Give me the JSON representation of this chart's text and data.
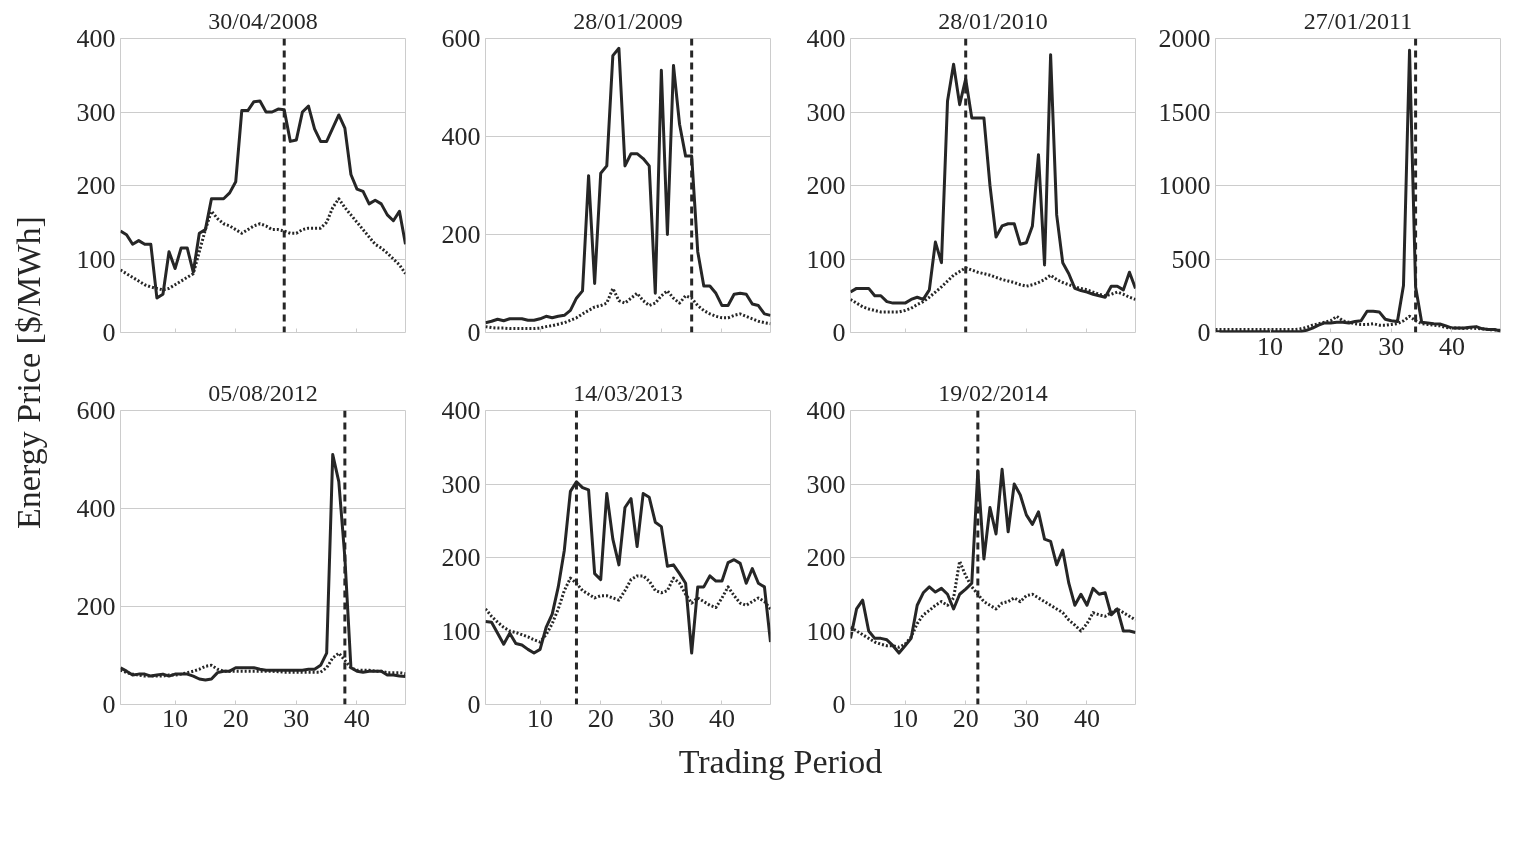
{
  "chart_data": [
    {
      "type": "line",
      "title": "30/04/2008",
      "ylabel": "Energy Price [$/MWh]",
      "x": [
        1,
        2,
        3,
        4,
        5,
        6,
        7,
        8,
        9,
        10,
        11,
        12,
        13,
        14,
        15,
        16,
        17,
        18,
        19,
        20,
        21,
        22,
        23,
        24,
        25,
        26,
        27,
        28,
        29,
        30,
        31,
        32,
        33,
        34,
        35,
        36,
        37,
        38,
        39,
        40,
        41,
        42,
        43,
        44,
        45,
        46,
        47,
        48
      ],
      "xlim": [
        1,
        48
      ],
      "xticks": [
        10,
        20,
        30,
        40
      ],
      "ylim": [
        0,
        400
      ],
      "yticks": [
        0,
        100,
        200,
        300,
        400
      ],
      "grid": "y",
      "tick_labels": "y",
      "series": [
        {
          "color": "#262626",
          "line_style": "solid",
          "values": [
            138,
            133,
            120,
            125,
            120,
            120,
            47,
            52,
            110,
            87,
            115,
            115,
            82,
            135,
            140,
            182,
            182,
            182,
            190,
            205,
            302,
            302,
            314,
            315,
            300,
            300,
            304,
            303,
            260,
            262,
            300,
            308,
            277,
            260,
            260,
            278,
            296,
            278,
            215,
            195,
            192,
            175,
            180,
            175,
            160,
            152,
            165,
            120
          ]
        },
        {
          "color": "#262626",
          "line_style": "dotted",
          "values": [
            85,
            80,
            75,
            70,
            65,
            62,
            60,
            58,
            60,
            65,
            70,
            75,
            80,
            110,
            140,
            165,
            155,
            148,
            145,
            140,
            135,
            140,
            145,
            148,
            145,
            140,
            140,
            138,
            135,
            135,
            140,
            142,
            142,
            142,
            150,
            170,
            182,
            170,
            160,
            150,
            140,
            130,
            120,
            115,
            108,
            100,
            92,
            80
          ]
        }
      ],
      "ref_lines": [
        {
          "axis": "x",
          "value": 28,
          "line_style": "dashed",
          "color": "#262626"
        }
      ]
    },
    {
      "type": "line",
      "title": "28/01/2009",
      "x": [
        1,
        2,
        3,
        4,
        5,
        6,
        7,
        8,
        9,
        10,
        11,
        12,
        13,
        14,
        15,
        16,
        17,
        18,
        19,
        20,
        21,
        22,
        23,
        24,
        25,
        26,
        27,
        28,
        29,
        30,
        31,
        32,
        33,
        34,
        35,
        36,
        37,
        38,
        39,
        40,
        41,
        42,
        43,
        44,
        45,
        46,
        47,
        48
      ],
      "xlim": [
        1,
        48
      ],
      "xticks": [
        10,
        20,
        30,
        40
      ],
      "ylim": [
        0,
        600
      ],
      "yticks": [
        0,
        200,
        400,
        600
      ],
      "grid": "y",
      "tick_labels": "y",
      "series": [
        {
          "color": "#262626",
          "line_style": "solid",
          "values": [
            20,
            23,
            27,
            24,
            28,
            28,
            28,
            25,
            25,
            28,
            33,
            30,
            33,
            35,
            45,
            70,
            85,
            320,
            100,
            325,
            340,
            565,
            580,
            340,
            365,
            365,
            355,
            340,
            80,
            535,
            200,
            545,
            425,
            360,
            360,
            165,
            95,
            95,
            80,
            55,
            55,
            78,
            80,
            78,
            58,
            55,
            38,
            35
          ]
        },
        {
          "color": "#262626",
          "line_style": "dotted",
          "values": [
            12,
            10,
            9,
            9,
            8,
            8,
            8,
            8,
            8,
            9,
            12,
            14,
            17,
            20,
            25,
            30,
            38,
            45,
            52,
            55,
            60,
            90,
            65,
            60,
            70,
            80,
            65,
            55,
            60,
            75,
            85,
            70,
            60,
            75,
            70,
            55,
            45,
            38,
            33,
            30,
            30,
            35,
            38,
            33,
            28,
            23,
            20,
            18
          ]
        }
      ],
      "ref_lines": [
        {
          "axis": "x",
          "value": 35,
          "line_style": "dashed",
          "color": "#262626"
        }
      ]
    },
    {
      "type": "line",
      "title": "28/01/2010",
      "x": [
        1,
        2,
        3,
        4,
        5,
        6,
        7,
        8,
        9,
        10,
        11,
        12,
        13,
        14,
        15,
        16,
        17,
        18,
        19,
        20,
        21,
        22,
        23,
        24,
        25,
        26,
        27,
        28,
        29,
        30,
        31,
        32,
        33,
        34,
        35,
        36,
        37,
        38,
        39,
        40,
        41,
        42,
        43,
        44,
        45,
        46,
        47,
        48
      ],
      "xlim": [
        1,
        48
      ],
      "xticks": [
        10,
        20,
        30,
        40
      ],
      "ylim": [
        0,
        400
      ],
      "yticks": [
        0,
        100,
        200,
        300,
        400
      ],
      "grid": "y",
      "tick_labels": "y",
      "series": [
        {
          "color": "#262626",
          "line_style": "solid",
          "values": [
            55,
            60,
            60,
            60,
            50,
            50,
            42,
            40,
            40,
            40,
            45,
            48,
            45,
            58,
            123,
            95,
            315,
            365,
            310,
            345,
            292,
            292,
            292,
            200,
            130,
            145,
            148,
            148,
            120,
            122,
            145,
            242,
            92,
            378,
            160,
            95,
            80,
            60,
            57,
            55,
            52,
            50,
            48,
            63,
            63,
            58,
            82,
            60
          ]
        },
        {
          "color": "#262626",
          "line_style": "dotted",
          "values": [
            45,
            40,
            35,
            32,
            30,
            28,
            28,
            28,
            28,
            30,
            33,
            38,
            42,
            48,
            55,
            62,
            70,
            78,
            83,
            88,
            85,
            82,
            80,
            78,
            75,
            72,
            70,
            68,
            65,
            63,
            65,
            68,
            72,
            78,
            72,
            68,
            65,
            62,
            60,
            58,
            55,
            52,
            50,
            52,
            55,
            52,
            48,
            45
          ]
        }
      ],
      "ref_lines": [
        {
          "axis": "x",
          "value": 20,
          "line_style": "dashed",
          "color": "#262626"
        }
      ]
    },
    {
      "type": "line",
      "title": "27/01/2011",
      "x": [
        1,
        2,
        3,
        4,
        5,
        6,
        7,
        8,
        9,
        10,
        11,
        12,
        13,
        14,
        15,
        16,
        17,
        18,
        19,
        20,
        21,
        22,
        23,
        24,
        25,
        26,
        27,
        28,
        29,
        30,
        31,
        32,
        33,
        34,
        35,
        36,
        37,
        38,
        39,
        40,
        41,
        42,
        43,
        44,
        45,
        46,
        47,
        48
      ],
      "xlim": [
        1,
        48
      ],
      "xticks": [
        10,
        20,
        30,
        40
      ],
      "ylim": [
        0,
        2000
      ],
      "yticks": [
        0,
        500,
        1000,
        1500,
        2000
      ],
      "grid": "y",
      "series": [
        {
          "color": "#262626",
          "line_style": "solid",
          "values": [
            5,
            5,
            5,
            5,
            5,
            5,
            5,
            5,
            5,
            5,
            5,
            5,
            5,
            5,
            5,
            15,
            30,
            50,
            65,
            65,
            70,
            70,
            65,
            75,
            80,
            145,
            145,
            140,
            90,
            80,
            75,
            320,
            1920,
            310,
            70,
            65,
            60,
            58,
            45,
            30,
            30,
            30,
            35,
            40,
            25,
            20,
            20,
            10
          ]
        },
        {
          "color": "#262626",
          "line_style": "dotted",
          "values": [
            20,
            20,
            20,
            20,
            20,
            20,
            20,
            20,
            20,
            20,
            20,
            20,
            20,
            20,
            25,
            35,
            50,
            60,
            70,
            80,
            110,
            80,
            70,
            60,
            55,
            55,
            60,
            50,
            50,
            55,
            60,
            80,
            110,
            80,
            60,
            55,
            50,
            45,
            35,
            30,
            30,
            28,
            30,
            28,
            25,
            20,
            18,
            15
          ]
        }
      ],
      "ref_lines": [
        {
          "axis": "x",
          "value": 34,
          "line_style": "dashed",
          "color": "#262626"
        }
      ]
    },
    {
      "type": "line",
      "title": "05/08/2012",
      "x": [
        1,
        2,
        3,
        4,
        5,
        6,
        7,
        8,
        9,
        10,
        11,
        12,
        13,
        14,
        15,
        16,
        17,
        18,
        19,
        20,
        21,
        22,
        23,
        24,
        25,
        26,
        27,
        28,
        29,
        30,
        31,
        32,
        33,
        34,
        35,
        36,
        37,
        38,
        39,
        40,
        41,
        42,
        43,
        44,
        45,
        46,
        47,
        48
      ],
      "xlim": [
        1,
        48
      ],
      "xticks": [
        10,
        20,
        30,
        40
      ],
      "ylim": [
        0,
        600
      ],
      "yticks": [
        0,
        200,
        400,
        600
      ],
      "grid": "y",
      "series": [
        {
          "color": "#262626",
          "line_style": "solid",
          "values": [
            75,
            68,
            60,
            62,
            62,
            58,
            60,
            62,
            58,
            62,
            62,
            62,
            58,
            52,
            50,
            52,
            65,
            68,
            68,
            75,
            75,
            75,
            75,
            72,
            70,
            70,
            70,
            70,
            70,
            70,
            70,
            72,
            72,
            80,
            105,
            510,
            455,
            300,
            75,
            68,
            66,
            68,
            68,
            68,
            60,
            60,
            58,
            57
          ]
        },
        {
          "color": "#262626",
          "line_style": "dotted",
          "values": [
            70,
            65,
            62,
            60,
            58,
            58,
            58,
            58,
            60,
            60,
            62,
            65,
            68,
            72,
            78,
            80,
            72,
            68,
            68,
            68,
            68,
            68,
            68,
            68,
            68,
            68,
            67,
            66,
            66,
            66,
            66,
            66,
            66,
            66,
            75,
            95,
            105,
            90,
            75,
            70,
            70,
            70,
            68,
            68,
            65,
            65,
            65,
            63
          ]
        }
      ],
      "ref_lines": [
        {
          "axis": "x",
          "value": 38,
          "line_style": "dashed",
          "color": "#262626"
        }
      ]
    },
    {
      "type": "line",
      "title": "14/03/2013",
      "xlabel": "Trading Period",
      "x": [
        1,
        2,
        3,
        4,
        5,
        6,
        7,
        8,
        9,
        10,
        11,
        12,
        13,
        14,
        15,
        16,
        17,
        18,
        19,
        20,
        21,
        22,
        23,
        24,
        25,
        26,
        27,
        28,
        29,
        30,
        31,
        32,
        33,
        34,
        35,
        36,
        37,
        38,
        39,
        40,
        41,
        42,
        43,
        44,
        45,
        46,
        47,
        48
      ],
      "xlim": [
        1,
        48
      ],
      "xticks": [
        10,
        20,
        30,
        40
      ],
      "ylim": [
        0,
        400
      ],
      "yticks": [
        0,
        100,
        200,
        300,
        400
      ],
      "grid": "y",
      "series": [
        {
          "color": "#262626",
          "line_style": "solid",
          "values": [
            113,
            112,
            97,
            82,
            97,
            83,
            81,
            75,
            70,
            75,
            105,
            123,
            160,
            210,
            290,
            303,
            295,
            292,
            178,
            170,
            287,
            225,
            190,
            268,
            280,
            215,
            287,
            282,
            248,
            242,
            188,
            190,
            178,
            165,
            70,
            160,
            160,
            175,
            168,
            168,
            193,
            197,
            192,
            165,
            185,
            165,
            160,
            85
          ]
        },
        {
          "color": "#262626",
          "line_style": "dotted",
          "values": [
            130,
            120,
            112,
            105,
            100,
            98,
            95,
            92,
            88,
            85,
            95,
            110,
            130,
            155,
            172,
            165,
            155,
            150,
            145,
            148,
            148,
            145,
            142,
            155,
            170,
            175,
            175,
            168,
            155,
            152,
            155,
            172,
            165,
            150,
            138,
            145,
            140,
            135,
            132,
            145,
            160,
            148,
            138,
            135,
            140,
            145,
            140,
            130
          ]
        }
      ],
      "ref_lines": [
        {
          "axis": "x",
          "value": 16,
          "line_style": "dashed",
          "color": "#262626"
        }
      ]
    },
    {
      "type": "line",
      "title": "19/02/2014",
      "x": [
        1,
        2,
        3,
        4,
        5,
        6,
        7,
        8,
        9,
        10,
        11,
        12,
        13,
        14,
        15,
        16,
        17,
        18,
        19,
        20,
        21,
        22,
        23,
        24,
        25,
        26,
        27,
        28,
        29,
        30,
        31,
        32,
        33,
        34,
        35,
        36,
        37,
        38,
        39,
        40,
        41,
        42,
        43,
        44,
        45,
        46,
        47,
        48
      ],
      "xlim": [
        1,
        48
      ],
      "xticks": [
        10,
        20,
        30,
        40
      ],
      "ylim": [
        0,
        400
      ],
      "yticks": [
        0,
        100,
        200,
        300,
        400
      ],
      "grid": "y",
      "series": [
        {
          "color": "#262626",
          "line_style": "solid",
          "values": [
            90,
            130,
            142,
            100,
            90,
            90,
            88,
            80,
            70,
            80,
            90,
            135,
            152,
            160,
            153,
            158,
            150,
            130,
            150,
            157,
            165,
            318,
            198,
            268,
            232,
            320,
            235,
            300,
            285,
            258,
            245,
            262,
            225,
            222,
            190,
            210,
            165,
            135,
            150,
            135,
            158,
            150,
            152,
            122,
            130,
            100,
            100,
            98
          ]
        },
        {
          "color": "#262626",
          "line_style": "dotted",
          "values": [
            105,
            100,
            95,
            90,
            85,
            82,
            80,
            80,
            78,
            82,
            92,
            110,
            122,
            128,
            135,
            140,
            135,
            145,
            195,
            175,
            160,
            150,
            140,
            135,
            130,
            138,
            140,
            145,
            140,
            148,
            150,
            145,
            140,
            135,
            130,
            125,
            115,
            108,
            100,
            110,
            125,
            122,
            120,
            125,
            130,
            125,
            120,
            115
          ]
        }
      ],
      "ref_lines": [
        {
          "axis": "x",
          "value": 22,
          "line_style": "dashed",
          "color": "#262626"
        }
      ]
    }
  ]
}
